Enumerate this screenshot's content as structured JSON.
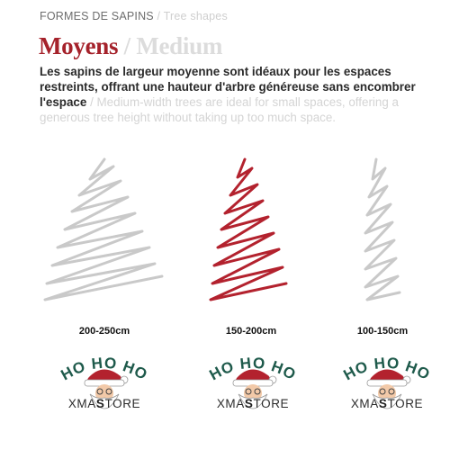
{
  "header": {
    "kicker_fr": "FORMES DE SAPINS",
    "kicker_sep": "/",
    "kicker_en": "Tree shapes",
    "title_fr": "Moyens",
    "title_sep": "/",
    "title_en": "Medium",
    "desc_fr": "Les sapins de largeur moyenne sont idéaux pour les espaces restreints, offrant une hauteur d'arbre généreuse sans encombrer l'espace",
    "desc_sep": "/",
    "desc_en": "Medium-width trees are ideal for small spaces, offering a generous tree height without taking up too much space."
  },
  "trees": [
    {
      "size": "200-250cm",
      "color": "#c9c9c9",
      "selected": false
    },
    {
      "size": "150-200cm",
      "color": "#b3222e",
      "selected": true
    },
    {
      "size": "100-150cm",
      "color": "#c9c9c9",
      "selected": false
    }
  ],
  "logo": {
    "line1": "HO HO HO",
    "brand_pre": "XMA",
    "brand_bold": "S",
    "brand_post": "TORE",
    "icon": "santa-face-icon",
    "ho_color": "#1e5a4b",
    "hat_color": "#b3222e"
  }
}
